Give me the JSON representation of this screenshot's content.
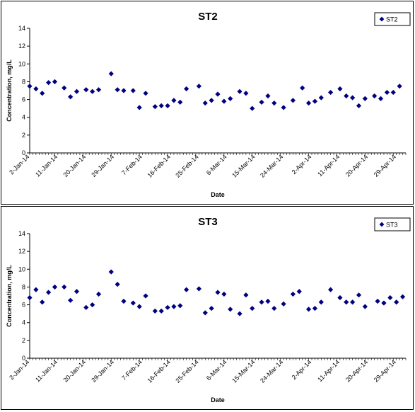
{
  "chart_data": [
    {
      "type": "scatter",
      "title": "ST2",
      "xlabel": "Date",
      "ylabel": "Concentration, mg/L",
      "ylim": [
        0,
        14
      ],
      "yticks": [
        "0",
        "2",
        "4",
        "6",
        "8",
        "10",
        "12",
        "14"
      ],
      "xlim": [
        "2014-01-02",
        "2014-05-02"
      ],
      "xtick_labels": [
        "2-Jan-14",
        "11-Jan-14",
        "20-Jan-14",
        "29-Jan-14",
        "7-Feb-14",
        "16-Feb-14",
        "25-Feb-14",
        "6-Mar-14",
        "15-Mar-14",
        "24-Mar-14",
        "2-Apr-14",
        "11-Apr-14",
        "20-Apr-14",
        "29-Apr-14"
      ],
      "legend": "top-right",
      "color": "#000080",
      "marker": "diamond",
      "series": [
        {
          "name": "ST2",
          "points": [
            [
              "2014-01-02",
              7.5
            ],
            [
              "2014-01-04",
              7.2
            ],
            [
              "2014-01-06",
              6.7
            ],
            [
              "2014-01-08",
              7.9
            ],
            [
              "2014-01-10",
              8.0
            ],
            [
              "2014-01-13",
              7.3
            ],
            [
              "2014-01-15",
              6.3
            ],
            [
              "2014-01-17",
              6.9
            ],
            [
              "2014-01-20",
              7.1
            ],
            [
              "2014-01-22",
              6.9
            ],
            [
              "2014-01-24",
              7.1
            ],
            [
              "2014-01-28",
              8.9
            ],
            [
              "2014-01-30",
              7.1
            ],
            [
              "2014-02-01",
              7.0
            ],
            [
              "2014-02-04",
              7.0
            ],
            [
              "2014-02-06",
              5.1
            ],
            [
              "2014-02-08",
              6.7
            ],
            [
              "2014-02-11",
              5.2
            ],
            [
              "2014-02-13",
              5.3
            ],
            [
              "2014-02-15",
              5.3
            ],
            [
              "2014-02-17",
              5.9
            ],
            [
              "2014-02-19",
              5.7
            ],
            [
              "2014-02-21",
              7.2
            ],
            [
              "2014-02-25",
              7.5
            ],
            [
              "2014-02-27",
              5.6
            ],
            [
              "2014-03-01",
              5.9
            ],
            [
              "2014-03-03",
              6.6
            ],
            [
              "2014-03-05",
              5.8
            ],
            [
              "2014-03-07",
              6.1
            ],
            [
              "2014-03-10",
              6.9
            ],
            [
              "2014-03-12",
              6.7
            ],
            [
              "2014-03-14",
              5.0
            ],
            [
              "2014-03-17",
              5.7
            ],
            [
              "2014-03-19",
              6.4
            ],
            [
              "2014-03-21",
              5.6
            ],
            [
              "2014-03-24",
              5.1
            ],
            [
              "2014-03-27",
              5.9
            ],
            [
              "2014-03-30",
              7.3
            ],
            [
              "2014-04-01",
              5.6
            ],
            [
              "2014-04-03",
              5.8
            ],
            [
              "2014-04-05",
              6.2
            ],
            [
              "2014-04-08",
              6.8
            ],
            [
              "2014-04-11",
              7.2
            ],
            [
              "2014-04-13",
              6.4
            ],
            [
              "2014-04-15",
              6.2
            ],
            [
              "2014-04-17",
              5.3
            ],
            [
              "2014-04-19",
              6.1
            ],
            [
              "2014-04-22",
              6.4
            ],
            [
              "2014-04-24",
              6.1
            ],
            [
              "2014-04-26",
              6.8
            ],
            [
              "2014-04-28",
              6.8
            ],
            [
              "2014-04-30",
              7.5
            ]
          ]
        }
      ]
    },
    {
      "type": "scatter",
      "title": "ST3",
      "xlabel": "Date",
      "ylabel": "Concentration, mg/L",
      "ylim": [
        0,
        14
      ],
      "yticks": [
        "0",
        "2",
        "4",
        "6",
        "8",
        "10",
        "12",
        "14"
      ],
      "xlim": [
        "2014-01-02",
        "2014-05-02"
      ],
      "xtick_labels": [
        "2-Jan-14",
        "11-Jan-14",
        "20-Jan-14",
        "29-Jan-14",
        "7-Feb-14",
        "16-Feb-14",
        "25-Feb-14",
        "6-Mar-14",
        "15-Mar-14",
        "24-Mar-14",
        "2-Apr-14",
        "11-Apr-14",
        "20-Apr-14",
        "29-Apr-14"
      ],
      "legend": "top-right",
      "color": "#000080",
      "marker": "diamond",
      "series": [
        {
          "name": "ST3",
          "points": [
            [
              "2014-01-02",
              6.8
            ],
            [
              "2014-01-04",
              7.7
            ],
            [
              "2014-01-06",
              6.3
            ],
            [
              "2014-01-08",
              7.4
            ],
            [
              "2014-01-10",
              8.0
            ],
            [
              "2014-01-13",
              8.0
            ],
            [
              "2014-01-15",
              6.5
            ],
            [
              "2014-01-17",
              7.5
            ],
            [
              "2014-01-20",
              5.7
            ],
            [
              "2014-01-22",
              6.0
            ],
            [
              "2014-01-24",
              7.2
            ],
            [
              "2014-01-28",
              9.7
            ],
            [
              "2014-01-30",
              8.3
            ],
            [
              "2014-02-01",
              6.4
            ],
            [
              "2014-02-04",
              6.2
            ],
            [
              "2014-02-06",
              5.8
            ],
            [
              "2014-02-08",
              7.0
            ],
            [
              "2014-02-11",
              5.3
            ],
            [
              "2014-02-13",
              5.3
            ],
            [
              "2014-02-15",
              5.7
            ],
            [
              "2014-02-17",
              5.8
            ],
            [
              "2014-02-19",
              5.9
            ],
            [
              "2014-02-21",
              7.7
            ],
            [
              "2014-02-25",
              7.8
            ],
            [
              "2014-02-27",
              5.1
            ],
            [
              "2014-03-01",
              5.6
            ],
            [
              "2014-03-03",
              7.4
            ],
            [
              "2014-03-05",
              7.2
            ],
            [
              "2014-03-07",
              5.5
            ],
            [
              "2014-03-10",
              5.0
            ],
            [
              "2014-03-12",
              7.1
            ],
            [
              "2014-03-14",
              5.6
            ],
            [
              "2014-03-17",
              6.3
            ],
            [
              "2014-03-19",
              6.4
            ],
            [
              "2014-03-21",
              5.6
            ],
            [
              "2014-03-24",
              6.1
            ],
            [
              "2014-03-27",
              7.2
            ],
            [
              "2014-03-29",
              7.5
            ],
            [
              "2014-04-01",
              5.5
            ],
            [
              "2014-04-03",
              5.6
            ],
            [
              "2014-04-05",
              6.3
            ],
            [
              "2014-04-08",
              7.7
            ],
            [
              "2014-04-11",
              6.8
            ],
            [
              "2014-04-13",
              6.3
            ],
            [
              "2014-04-15",
              6.3
            ],
            [
              "2014-04-17",
              7.1
            ],
            [
              "2014-04-19",
              5.8
            ],
            [
              "2014-04-23",
              6.4
            ],
            [
              "2014-04-25",
              6.2
            ],
            [
              "2014-04-27",
              6.8
            ],
            [
              "2014-04-29",
              6.3
            ],
            [
              "2014-05-01",
              6.9
            ]
          ]
        }
      ]
    }
  ]
}
